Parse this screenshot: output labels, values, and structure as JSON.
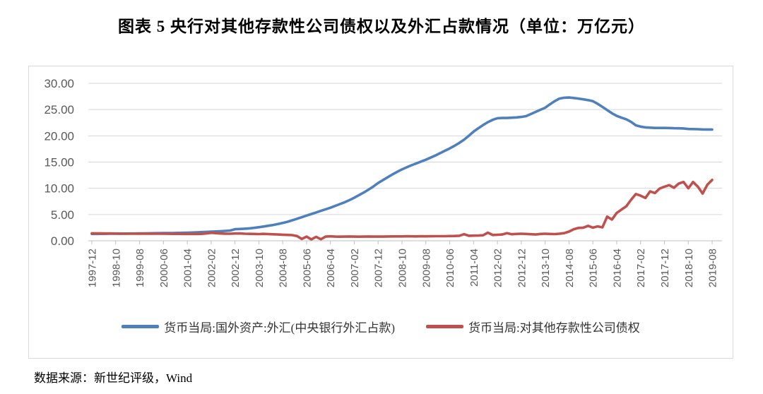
{
  "page": {
    "title": "图表 5  央行对其他存款性公司债权以及外汇占款情况（单位：万亿元）",
    "source_note": "数据来源：新世纪评级，Wind"
  },
  "chart_data": {
    "type": "line",
    "title": "央行对其他存款性公司债权以及外汇占款情况",
    "unit": "万亿元",
    "ylim": [
      0,
      30
    ],
    "ytick_labels": [
      "0.00",
      "5.00",
      "10.00",
      "15.00",
      "20.00",
      "25.00",
      "30.00"
    ],
    "grid": true,
    "legend_position": "bottom",
    "axis_color": "#bfbfbf",
    "grid_color": "#d6d6d6",
    "tick_label_color": "#595959",
    "x_tick_labels": [
      "1997-12",
      "1998-10",
      "1999-08",
      "2000-06",
      "2001-04",
      "2002-02",
      "2002-12",
      "2003-10",
      "2004-08",
      "2005-06",
      "2006-04",
      "2007-02",
      "2007-12",
      "2008-10",
      "2009-08",
      "2010-06",
      "2011-04",
      "2012-02",
      "2012-12",
      "2013-10",
      "2014-08",
      "2015-06",
      "2016-04",
      "2017-02",
      "2017-12",
      "2018-10",
      "2019-08"
    ],
    "x_sample_interval_months": 2,
    "x_points_per_tick": 5,
    "series": [
      {
        "name": "货币当局:国外资产:外汇(中央银行外汇占款)",
        "color": "#4e80bc",
        "values": [
          1.3,
          1.31,
          1.32,
          1.33,
          1.34,
          1.35,
          1.36,
          1.37,
          1.38,
          1.39,
          1.4,
          1.41,
          1.43,
          1.44,
          1.45,
          1.46,
          1.47,
          1.48,
          1.5,
          1.52,
          1.55,
          1.58,
          1.62,
          1.66,
          1.7,
          1.74,
          1.78,
          1.83,
          1.88,
          1.95,
          2.21,
          2.25,
          2.3,
          2.37,
          2.46,
          2.58,
          2.72,
          2.86,
          3.02,
          3.2,
          3.4,
          3.62,
          3.9,
          4.2,
          4.5,
          4.8,
          5.1,
          5.4,
          5.7,
          6.0,
          6.3,
          6.65,
          7.0,
          7.35,
          7.75,
          8.2,
          8.7,
          9.2,
          9.75,
          10.35,
          11.0,
          11.55,
          12.1,
          12.65,
          13.15,
          13.6,
          14.0,
          14.4,
          14.75,
          15.1,
          15.45,
          15.85,
          16.25,
          16.7,
          17.15,
          17.6,
          18.1,
          18.65,
          19.25,
          20.0,
          20.8,
          21.45,
          22.05,
          22.6,
          23.05,
          23.35,
          23.4,
          23.4,
          23.45,
          23.5,
          23.6,
          23.75,
          24.15,
          24.55,
          24.95,
          25.35,
          26.0,
          26.6,
          27.1,
          27.25,
          27.3,
          27.2,
          27.1,
          26.95,
          26.8,
          26.6,
          26.1,
          25.5,
          24.9,
          24.3,
          23.8,
          23.45,
          23.15,
          22.65,
          22.0,
          21.75,
          21.6,
          21.55,
          21.5,
          21.5,
          21.5,
          21.48,
          21.45,
          21.43,
          21.4,
          21.3,
          21.28,
          21.25,
          21.22,
          21.2,
          21.2
        ]
      },
      {
        "name": "货币当局:对其他存款性公司债权",
        "color": "#c0504d",
        "values": [
          1.42,
          1.41,
          1.4,
          1.39,
          1.38,
          1.37,
          1.36,
          1.35,
          1.34,
          1.34,
          1.35,
          1.36,
          1.37,
          1.36,
          1.35,
          1.34,
          1.33,
          1.32,
          1.32,
          1.31,
          1.3,
          1.3,
          1.3,
          1.32,
          1.4,
          1.52,
          1.45,
          1.38,
          1.35,
          1.34,
          1.38,
          1.4,
          1.35,
          1.32,
          1.3,
          1.28,
          1.32,
          1.28,
          1.24,
          1.2,
          1.16,
          1.12,
          1.08,
          0.9,
          0.35,
          0.8,
          0.25,
          0.75,
          0.3,
          0.8,
          0.85,
          0.8,
          0.78,
          0.8,
          0.82,
          0.8,
          0.78,
          0.8,
          0.82,
          0.8,
          0.79,
          0.8,
          0.82,
          0.84,
          0.83,
          0.84,
          0.86,
          0.85,
          0.84,
          0.86,
          0.85,
          0.86,
          0.88,
          0.87,
          0.88,
          0.9,
          0.92,
          0.95,
          1.25,
          0.95,
          0.98,
          1.0,
          1.05,
          1.55,
          1.1,
          1.15,
          1.2,
          1.45,
          1.25,
          1.3,
          1.35,
          1.3,
          1.25,
          1.2,
          1.3,
          1.35,
          1.3,
          1.28,
          1.35,
          1.45,
          1.75,
          2.2,
          2.45,
          2.5,
          2.85,
          2.5,
          2.75,
          2.55,
          4.6,
          4.05,
          5.3,
          5.95,
          6.55,
          7.8,
          8.9,
          8.6,
          8.15,
          9.4,
          9.1,
          9.95,
          10.3,
          10.6,
          10.1,
          10.9,
          11.2,
          10.0,
          11.2,
          10.3,
          9.0,
          10.7,
          11.6
        ]
      }
    ]
  }
}
